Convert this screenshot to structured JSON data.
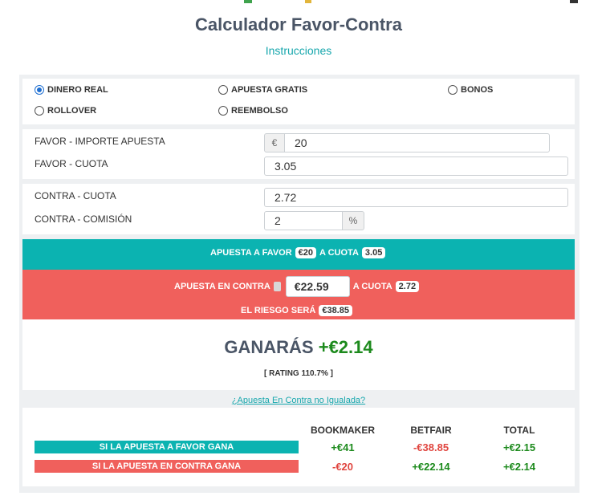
{
  "page": {
    "title": "Calculador Favor-Contra",
    "instructions_link": "Instrucciones"
  },
  "modes": [
    {
      "label": "DINERO REAL",
      "checked": true
    },
    {
      "label": "APUESTA GRATIS",
      "checked": false
    },
    {
      "label": "BONOS",
      "checked": false
    },
    {
      "label": "ROLLOVER",
      "checked": false
    },
    {
      "label": "REEMBOLSO",
      "checked": false
    }
  ],
  "favor": {
    "stake_label": "FAVOR - IMPORTE APUESTA",
    "currency_symbol": "€",
    "stake_value": "20",
    "odds_label": "FAVOR - CUOTA",
    "odds_value": "3.05"
  },
  "contra": {
    "odds_label": "CONTRA - CUOTA",
    "odds_value": "2.72",
    "commission_label": "CONTRA - COMISIÓN",
    "commission_value": "2",
    "percent_symbol": "%"
  },
  "summary": {
    "favor_text": "APUESTA A FAVOR",
    "favor_amount": "€20",
    "favor_odds_text": "A CUOTA",
    "favor_odds": "3.05",
    "contra_text": "APUESTA EN CONTRA",
    "contra_amount": "€22.59",
    "contra_odds_text": "A CUOTA",
    "contra_odds": "2.72",
    "risk_text": "EL RIESGO SERÁ",
    "risk_amount": "€38.85"
  },
  "result": {
    "profit_label": "GANARÁS",
    "profit_value": "+€2.14",
    "rating": "[ RATING 110.7% ]"
  },
  "unmatched_link": "¿Apuesta En Contra no Igualada?",
  "table": {
    "headers": [
      "BOOKMAKER",
      "BETFAIR",
      "TOTAL"
    ],
    "rows": [
      {
        "label": "SI LA APUESTA A FAVOR GANA",
        "color": "#0bb3b1",
        "values": [
          "+€41",
          "-€38.85",
          "+€2.15"
        ]
      },
      {
        "label": "SI LA APUESTA EN CONTRA GANA",
        "color": "#f0605c",
        "values": [
          "-€20",
          "+€22.14",
          "+€2.14"
        ]
      }
    ]
  },
  "colors": {
    "teal": "#0bb3b1",
    "red": "#f0605c",
    "positive": "#1c8a1c",
    "negative": "#e0453f"
  }
}
